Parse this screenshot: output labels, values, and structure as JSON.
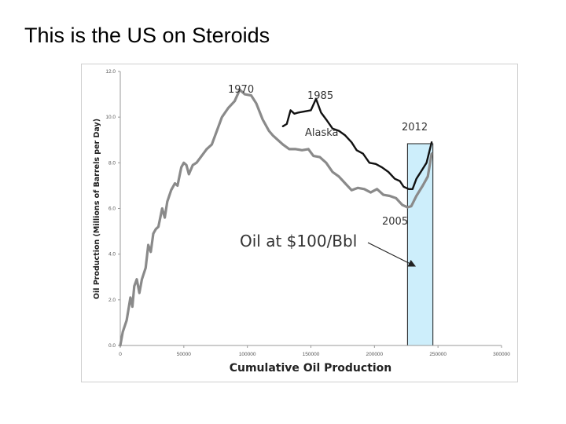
{
  "slide": {
    "title": "This is the US on Steroids"
  },
  "chart_data": {
    "type": "line",
    "xlabel": "Cumulative Oil Production",
    "ylabel": "Oil Production (Millions of Barrels per Day)",
    "xlim": [
      0,
      300000
    ],
    "ylim": [
      0,
      12
    ],
    "x_ticks": [
      0,
      50000,
      100000,
      150000,
      200000,
      250000,
      300000
    ],
    "y_ticks": [
      "0.0",
      "2.0",
      "4.0",
      "6.0",
      "8.0",
      "10.0",
      "12.0"
    ],
    "grid": false,
    "colors": {
      "with_alaska": "#111111",
      "without_alaska": "#8a8a8a",
      "highlight_fill": "#cdeefb",
      "highlight_stroke": "#1a1a1a"
    },
    "highlight_band": {
      "x_start": 226000,
      "x_end": 246000
    },
    "series": [
      {
        "values": [
          [
            0,
            0.0
          ],
          [
            2000,
            0.6
          ],
          [
            5000,
            1.1
          ],
          [
            8000,
            2.1
          ],
          [
            9500,
            1.7
          ],
          [
            11000,
            2.6
          ],
          [
            13000,
            2.9
          ],
          [
            15000,
            2.3
          ],
          [
            17000,
            2.9
          ],
          [
            20000,
            3.4
          ],
          [
            22000,
            4.4
          ],
          [
            24000,
            4.1
          ],
          [
            26000,
            4.9
          ],
          [
            28000,
            5.1
          ],
          [
            30000,
            5.2
          ],
          [
            33000,
            6.0
          ],
          [
            35000,
            5.6
          ],
          [
            37000,
            6.3
          ],
          [
            40000,
            6.8
          ],
          [
            43000,
            7.1
          ],
          [
            45000,
            7.0
          ],
          [
            48000,
            7.8
          ],
          [
            50000,
            8.0
          ],
          [
            52000,
            7.9
          ],
          [
            54000,
            7.5
          ],
          [
            57000,
            7.9
          ],
          [
            60000,
            8.0
          ],
          [
            64000,
            8.3
          ],
          [
            68000,
            8.6
          ],
          [
            72000,
            8.8
          ],
          [
            76000,
            9.4
          ],
          [
            80000,
            10.0
          ],
          [
            85000,
            10.4
          ],
          [
            90000,
            10.7
          ],
          [
            94000,
            11.2
          ],
          [
            98000,
            11.0
          ],
          [
            103000,
            10.95
          ],
          [
            107000,
            10.6
          ],
          [
            112000,
            9.9
          ],
          [
            117000,
            9.4
          ],
          [
            120000,
            9.2
          ],
          [
            124000,
            9.0
          ],
          [
            128000,
            8.8
          ],
          [
            133000,
            8.6
          ],
          [
            138000,
            8.6
          ],
          [
            143000,
            8.55
          ],
          [
            148000,
            8.6
          ],
          [
            152000,
            8.3
          ],
          [
            157000,
            8.25
          ],
          [
            162000,
            8.0
          ],
          [
            167000,
            7.6
          ],
          [
            172000,
            7.4
          ],
          [
            177000,
            7.1
          ],
          [
            182000,
            6.8
          ],
          [
            187000,
            6.9
          ],
          [
            192000,
            6.85
          ],
          [
            197000,
            6.7
          ],
          [
            202000,
            6.85
          ],
          [
            207000,
            6.6
          ],
          [
            212000,
            6.55
          ],
          [
            217000,
            6.45
          ],
          [
            222000,
            6.15
          ],
          [
            226000,
            6.05
          ],
          [
            229000,
            6.1
          ],
          [
            233000,
            6.55
          ],
          [
            238000,
            7.0
          ],
          [
            242000,
            7.4
          ],
          [
            245000,
            8.4
          ]
        ]
      },
      {
        "values": [
          [
            128000,
            9.6
          ],
          [
            131000,
            9.7
          ],
          [
            134000,
            10.3
          ],
          [
            137000,
            10.15
          ],
          [
            140000,
            10.2
          ],
          [
            145000,
            10.25
          ],
          [
            150000,
            10.3
          ],
          [
            154000,
            10.8
          ],
          [
            158000,
            10.2
          ],
          [
            162000,
            9.9
          ],
          [
            167000,
            9.5
          ],
          [
            172000,
            9.4
          ],
          [
            177000,
            9.2
          ],
          [
            182000,
            8.9
          ],
          [
            186000,
            8.55
          ],
          [
            191000,
            8.4
          ],
          [
            196000,
            8.0
          ],
          [
            201000,
            7.95
          ],
          [
            206000,
            7.8
          ],
          [
            211000,
            7.6
          ],
          [
            216000,
            7.3
          ],
          [
            220000,
            7.2
          ],
          [
            223000,
            6.95
          ],
          [
            227000,
            6.85
          ],
          [
            230000,
            6.85
          ],
          [
            233000,
            7.3
          ],
          [
            237000,
            7.65
          ],
          [
            241000,
            8.0
          ],
          [
            245000,
            8.9
          ]
        ]
      }
    ],
    "annotations": [
      {
        "id": "a1970",
        "text": "1970"
      },
      {
        "id": "a1985",
        "text": "1985"
      },
      {
        "id": "alaska",
        "text": "Alaska"
      },
      {
        "id": "a2012",
        "text": "2012"
      },
      {
        "id": "a2005",
        "text": "2005"
      },
      {
        "id": "oil",
        "text": "Oil at $100/Bbl"
      }
    ]
  }
}
